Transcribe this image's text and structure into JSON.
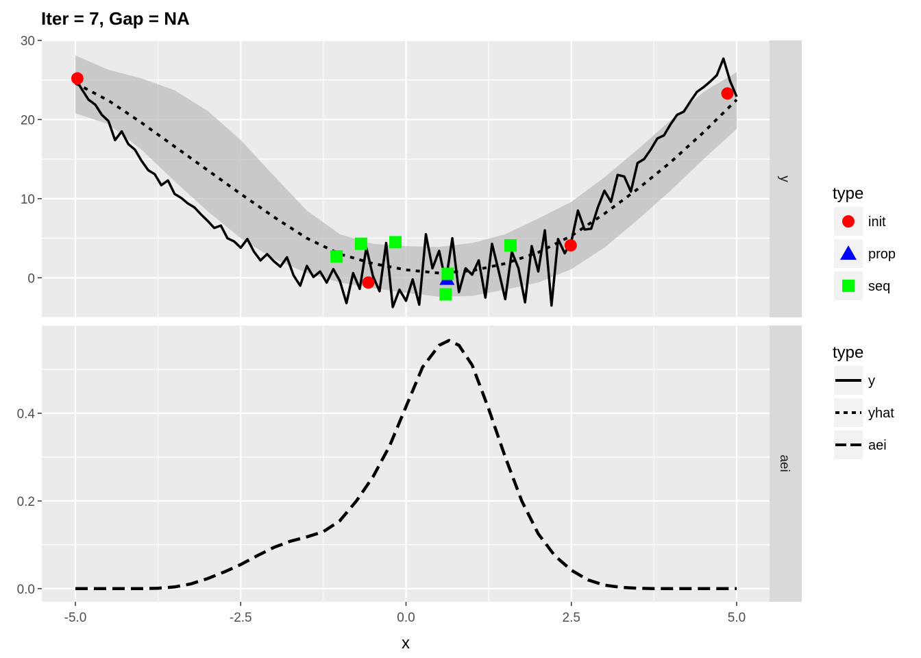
{
  "title": "Iter = 7, Gap = NA",
  "chart_data": {
    "type": "line",
    "xlabel": "x",
    "xlim": [
      -5,
      5
    ],
    "x_ticks": [
      -5.0,
      -2.5,
      0.0,
      2.5,
      5.0
    ],
    "x_tick_labels": [
      "-5.0",
      "-2.5",
      "0.0",
      "2.5",
      "5.0"
    ],
    "grid": true,
    "legend_position": "right",
    "panels": [
      {
        "strip": "y",
        "ylim": [
          -5,
          30
        ],
        "y_ticks": [
          0,
          10,
          20,
          30
        ],
        "y_tick_labels": [
          "0",
          "10",
          "20",
          "30"
        ],
        "y_noisy": {
          "x": [
            -5.0,
            -4.9,
            -4.8,
            -4.7,
            -4.6,
            -4.5,
            -4.4,
            -4.3,
            -4.2,
            -4.1,
            -4.0,
            -3.9,
            -3.8,
            -3.7,
            -3.6,
            -3.5,
            -3.4,
            -3.3,
            -3.2,
            -3.1,
            -3.0,
            -2.9,
            -2.8,
            -2.7,
            -2.6,
            -2.5,
            -2.4,
            -2.3,
            -2.2,
            -2.1,
            -2.0,
            -1.9,
            -1.8,
            -1.7,
            -1.6,
            -1.5,
            -1.4,
            -1.3,
            -1.2,
            -1.1,
            -1.0,
            -0.9,
            -0.8,
            -0.7,
            -0.6,
            -0.5,
            -0.4,
            -0.3,
            -0.2,
            -0.1,
            0.0,
            0.1,
            0.2,
            0.3,
            0.4,
            0.5,
            0.6,
            0.7,
            0.8,
            0.9,
            1.0,
            1.1,
            1.2,
            1.3,
            1.4,
            1.5,
            1.6,
            1.7,
            1.8,
            1.9,
            2.0,
            2.1,
            2.2,
            2.3,
            2.4,
            2.5,
            2.6,
            2.7,
            2.8,
            2.9,
            3.0,
            3.1,
            3.2,
            3.3,
            3.4,
            3.5,
            3.6,
            3.7,
            3.8,
            3.9,
            4.0,
            4.1,
            4.2,
            4.3,
            4.4,
            4.5,
            4.6,
            4.7,
            4.8,
            4.9,
            5.0
          ],
          "y": [
            25.2,
            23.8,
            22.5,
            21.9,
            20.6,
            19.8,
            17.4,
            18.5,
            16.9,
            16.2,
            14.8,
            13.6,
            13.1,
            11.7,
            12.3,
            10.6,
            10.1,
            9.4,
            8.9,
            8.0,
            7.2,
            6.3,
            6.6,
            5.0,
            4.6,
            3.8,
            4.9,
            3.3,
            2.2,
            3.0,
            2.1,
            1.4,
            2.6,
            0.3,
            -1.0,
            1.5,
            0.1,
            0.8,
            -0.6,
            1.1,
            -0.4,
            -3.2,
            0.6,
            -1.4,
            3.8,
            0.2,
            -1.7,
            4.4,
            -3.7,
            -1.5,
            -2.9,
            -0.2,
            -3.4,
            5.5,
            1.2,
            3.4,
            -0.5,
            5.0,
            -1.8,
            1.2,
            0.4,
            2.2,
            -2.5,
            4.3,
            0.9,
            -2.7,
            3.3,
            1.2,
            -3.1,
            4.0,
            0.8,
            6.0,
            -3.5,
            4.9,
            3.1,
            4.6,
            8.5,
            6.1,
            6.2,
            8.9,
            11.0,
            9.6,
            13.0,
            12.8,
            10.9,
            14.5,
            15.0,
            16.2,
            17.6,
            18.0,
            19.4,
            20.6,
            21.0,
            22.3,
            23.5,
            24.1,
            24.8,
            25.6,
            27.7,
            24.9,
            22.9
          ]
        },
        "yhat": {
          "x": [
            -5.0,
            -4.5,
            -4.0,
            -3.5,
            -3.0,
            -2.5,
            -2.0,
            -1.5,
            -1.0,
            -0.5,
            0.0,
            0.5,
            1.0,
            1.5,
            2.0,
            2.5,
            3.0,
            3.5,
            4.0,
            4.5,
            5.0
          ],
          "y": [
            24.6,
            22.4,
            19.6,
            16.6,
            13.6,
            10.6,
            7.7,
            5.0,
            3.0,
            1.8,
            1.0,
            0.6,
            0.9,
            1.8,
            3.2,
            5.3,
            8.1,
            11.2,
            14.6,
            18.4,
            22.5
          ]
        },
        "confidence_band": {
          "x": [
            -5.0,
            -4.5,
            -4.0,
            -3.5,
            -3.0,
            -2.5,
            -2.0,
            -1.5,
            -1.0,
            -0.5,
            0.0,
            0.5,
            1.0,
            1.5,
            2.0,
            2.5,
            3.0,
            3.5,
            4.0,
            4.5,
            5.0
          ],
          "lower": [
            20.8,
            19.4,
            16.2,
            12.2,
            8.4,
            5.0,
            2.4,
            0.6,
            -0.6,
            -1.3,
            -1.9,
            -2.4,
            -2.3,
            -1.5,
            -0.6,
            1.1,
            3.8,
            7.3,
            11.0,
            15.0,
            18.8
          ],
          "upper": [
            28.1,
            26.3,
            25.2,
            23.7,
            21.1,
            17.4,
            12.9,
            8.5,
            5.5,
            4.3,
            4.0,
            3.9,
            4.4,
            5.5,
            7.5,
            9.6,
            12.7,
            16.2,
            19.9,
            23.5,
            26.0
          ]
        },
        "points": [
          {
            "series": "init",
            "x": [
              -4.97,
              -0.57,
              2.49,
              4.86
            ],
            "y": [
              25.2,
              -0.6,
              4.1,
              23.3
            ]
          },
          {
            "series": "prop",
            "x": [
              0.62
            ],
            "y": [
              -0.2
            ]
          },
          {
            "series": "seq",
            "x": [
              -1.05,
              -0.68,
              -0.16,
              0.6,
              0.63,
              1.58
            ],
            "y": [
              2.7,
              4.3,
              4.5,
              -2.1,
              0.5,
              4.1
            ]
          }
        ]
      },
      {
        "strip": "aei",
        "ylim": [
          -0.03,
          0.6
        ],
        "y_ticks": [
          0.0,
          0.2,
          0.4
        ],
        "y_tick_labels": [
          "0.0",
          "0.2",
          "0.4"
        ],
        "aei": {
          "x": [
            -5.0,
            -4.5,
            -4.0,
            -3.75,
            -3.5,
            -3.25,
            -3.0,
            -2.75,
            -2.5,
            -2.25,
            -2.0,
            -1.75,
            -1.5,
            -1.25,
            -1.0,
            -0.75,
            -0.5,
            -0.25,
            0.0,
            0.25,
            0.5,
            0.65,
            0.8,
            1.0,
            1.25,
            1.5,
            1.75,
            2.0,
            2.25,
            2.5,
            2.75,
            3.0,
            3.25,
            3.5,
            3.75,
            4.0,
            4.5,
            5.0
          ],
          "y": [
            0.0,
            0.0,
            0.0,
            0.001,
            0.004,
            0.011,
            0.023,
            0.038,
            0.055,
            0.075,
            0.094,
            0.108,
            0.118,
            0.13,
            0.155,
            0.2,
            0.255,
            0.325,
            0.415,
            0.505,
            0.555,
            0.566,
            0.555,
            0.51,
            0.41,
            0.3,
            0.2,
            0.125,
            0.075,
            0.042,
            0.02,
            0.008,
            0.003,
            0.001,
            0.0,
            0.0,
            0.0,
            0.0
          ]
        }
      }
    ],
    "legends": [
      {
        "title": "type",
        "entries": [
          {
            "label": "init",
            "shape": "circle",
            "color": "#ff0000"
          },
          {
            "label": "prop",
            "shape": "triangle",
            "color": "#0000ff"
          },
          {
            "label": "seq",
            "shape": "square",
            "color": "#00ff00"
          }
        ]
      },
      {
        "title": "type",
        "entries": [
          {
            "label": "y",
            "linetype": "solid"
          },
          {
            "label": "yhat",
            "linetype": "dotted"
          },
          {
            "label": "aei",
            "linetype": "dashed"
          }
        ]
      }
    ],
    "colors": {
      "panel_bg": "#ebebeb",
      "strip_bg": "#d9d9d9",
      "grid": "#ffffff",
      "band": "#bdbdbd",
      "line": "#000000"
    }
  }
}
